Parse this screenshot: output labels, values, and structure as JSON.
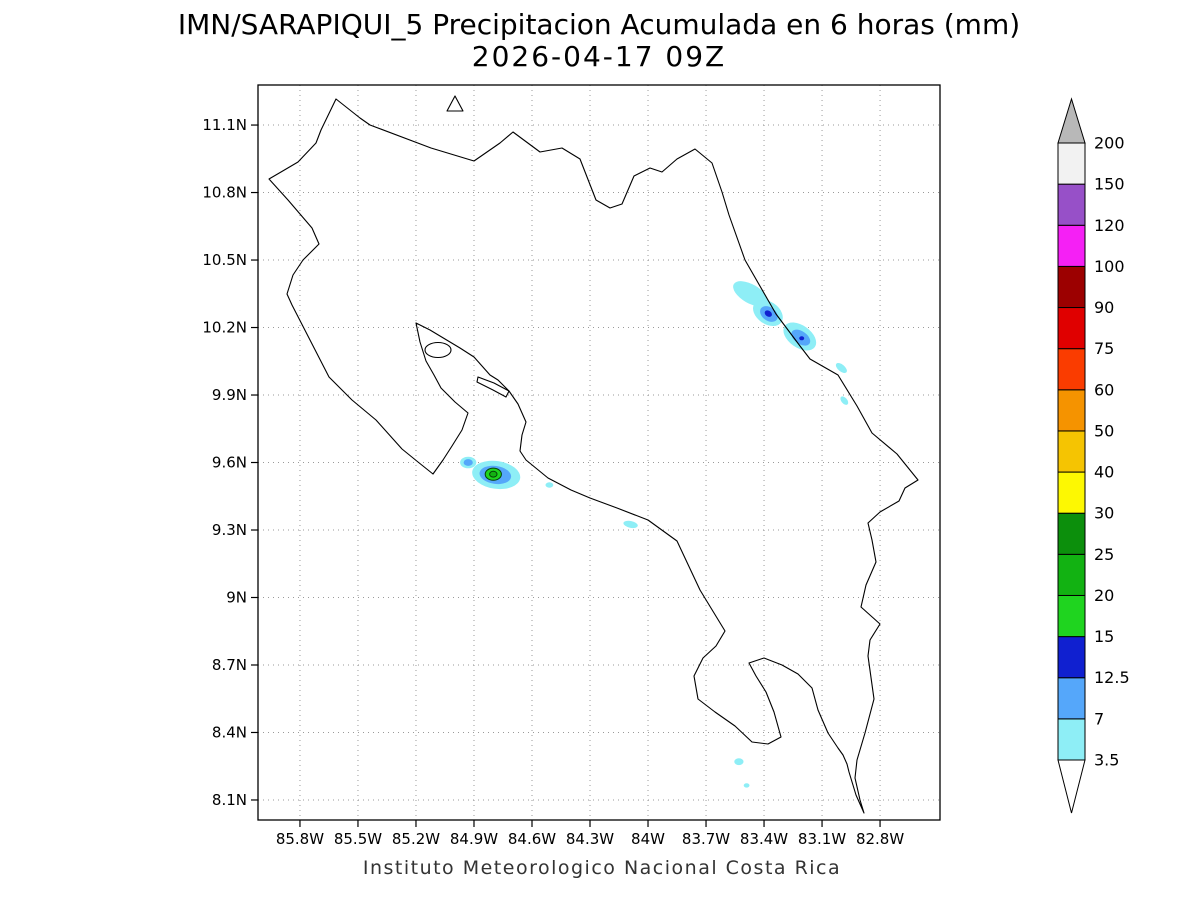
{
  "chart_data": {
    "type": "filled-contour-map",
    "title": "IMN/SARAPIQUI_5 Precipitacion Acumulada en 6 horas (mm)",
    "subtitle": "2026-04-17 09Z",
    "footer": "Instituto Meteorologico Nacional Costa Rica",
    "units": "mm",
    "grid": true,
    "xlim": [
      -86.017,
      -82.49
    ],
    "ylim": [
      8.011,
      11.278
    ],
    "x_tick_values": [
      -85.8,
      -85.5,
      -85.2,
      -84.9,
      -84.6,
      -84.3,
      -84.0,
      -83.7,
      -83.4,
      -83.1,
      -82.8
    ],
    "x_tick_labels": [
      "85.8W",
      "85.5W",
      "85.2W",
      "84.9W",
      "84.6W",
      "84.3W",
      "84W",
      "83.7W",
      "83.4W",
      "83.1W",
      "82.8W"
    ],
    "y_tick_values": [
      11.1,
      10.8,
      10.5,
      10.2,
      9.9,
      9.6,
      9.3,
      9.0,
      8.7,
      8.4,
      8.1
    ],
    "y_tick_labels": [
      "11.1N",
      "10.8N",
      "10.5N",
      "10.2N",
      "9.9N",
      "9.6N",
      "9.3N",
      "9N",
      "8.7N",
      "8.4N",
      "8.1N"
    ],
    "colorbar": {
      "levels": [
        "3.5",
        "7",
        "12.5",
        "15",
        "20",
        "25",
        "30",
        "40",
        "50",
        "60",
        "75",
        "90",
        "100",
        "120",
        "150",
        "200"
      ],
      "segment_colors": [
        "#8eeef6",
        "#55a7fa",
        "#1020d0",
        "#1fd41f",
        "#12b212",
        "#0c8f0c",
        "#fdf802",
        "#f5c402",
        "#f59300",
        "#fa3c00",
        "#e00000",
        "#9c0000",
        "#f520f5",
        "#9750c8",
        "#f2f2f2"
      ],
      "below_color": "#ffffff",
      "above_color": "#b8b8b8"
    },
    "features": [
      {
        "lon": -83.47,
        "lat": 10.35,
        "rx": 0.1,
        "ry": 0.042,
        "level": "3.5",
        "rot": 30
      },
      {
        "lon": -83.38,
        "lat": 10.265,
        "rx": 0.085,
        "ry": 0.05,
        "level": "3.5",
        "rot": 35
      },
      {
        "lon": -83.375,
        "lat": 10.26,
        "rx": 0.05,
        "ry": 0.03,
        "level": "7",
        "rot": 35
      },
      {
        "lon": -83.378,
        "lat": 10.262,
        "rx": 0.02,
        "ry": 0.013,
        "level": "12.5",
        "rot": 35
      },
      {
        "lon": -83.215,
        "lat": 10.16,
        "rx": 0.095,
        "ry": 0.05,
        "level": "3.5",
        "rot": 35
      },
      {
        "lon": -83.21,
        "lat": 10.155,
        "rx": 0.055,
        "ry": 0.028,
        "level": "7",
        "rot": 35
      },
      {
        "lon": -83.205,
        "lat": 10.152,
        "rx": 0.013,
        "ry": 0.009,
        "level": "12.5",
        "rot": 0
      },
      {
        "lon": -83.0,
        "lat": 10.02,
        "rx": 0.034,
        "ry": 0.015,
        "level": "3.5",
        "rot": 40
      },
      {
        "lon": -82.985,
        "lat": 9.875,
        "rx": 0.026,
        "ry": 0.013,
        "level": "3.5",
        "rot": 50
      },
      {
        "lon": -84.785,
        "lat": 9.545,
        "rx": 0.125,
        "ry": 0.062,
        "level": "3.5",
        "rot": 8
      },
      {
        "lon": -84.79,
        "lat": 9.545,
        "rx": 0.082,
        "ry": 0.04,
        "level": "7",
        "rot": 8
      },
      {
        "lon": -84.8,
        "lat": 9.548,
        "rx": 0.042,
        "ry": 0.027,
        "level": "15",
        "outline": true
      },
      {
        "lon": -84.8,
        "lat": 9.548,
        "rx": 0.019,
        "ry": 0.013,
        "level": "20",
        "outline": true
      },
      {
        "lon": -84.93,
        "lat": 9.6,
        "rx": 0.042,
        "ry": 0.026,
        "level": "3.5"
      },
      {
        "lon": -84.93,
        "lat": 9.6,
        "rx": 0.024,
        "ry": 0.015,
        "level": "7"
      },
      {
        "lon": -84.51,
        "lat": 9.5,
        "rx": 0.02,
        "ry": 0.012,
        "level": "3.5"
      },
      {
        "lon": -84.09,
        "lat": 9.325,
        "rx": 0.038,
        "ry": 0.015,
        "level": "3.5",
        "rot": 12
      },
      {
        "lon": -83.53,
        "lat": 8.27,
        "rx": 0.024,
        "ry": 0.015,
        "level": "3.5"
      },
      {
        "lon": -83.49,
        "lat": 8.165,
        "rx": 0.015,
        "ry": 0.01,
        "level": "3.5"
      }
    ]
  }
}
